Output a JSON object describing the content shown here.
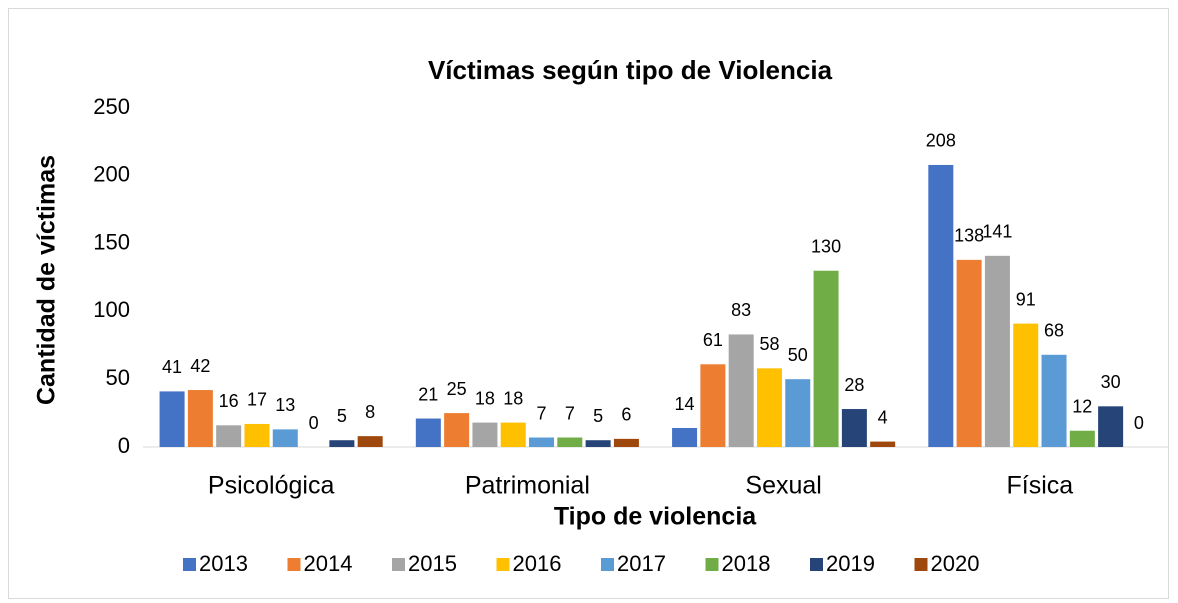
{
  "chart_data": {
    "type": "bar",
    "title": "Víctimas según tipo de Violencia",
    "x_label": "Tipo de violencia",
    "y_label": "Cantidad de víctimas",
    "categories": [
      "Psicológica",
      "Patrimonial",
      "Sexual",
      "Física"
    ],
    "series": [
      {
        "name": "2013",
        "color": "#4472c4",
        "values": [
          41,
          21,
          14,
          208
        ]
      },
      {
        "name": "2014",
        "color": "#ed7d31",
        "values": [
          42,
          25,
          61,
          138
        ]
      },
      {
        "name": "2015",
        "color": "#a5a5a5",
        "values": [
          16,
          18,
          83,
          141
        ]
      },
      {
        "name": "2016",
        "color": "#ffc000",
        "values": [
          17,
          18,
          58,
          91
        ]
      },
      {
        "name": "2017",
        "color": "#5b9bd5",
        "values": [
          13,
          7,
          50,
          68
        ]
      },
      {
        "name": "2018",
        "color": "#70ad47",
        "values": [
          0,
          7,
          130,
          12
        ]
      },
      {
        "name": "2019",
        "color": "#264478",
        "values": [
          5,
          5,
          28,
          30
        ]
      },
      {
        "name": "2020",
        "color": "#9e480e",
        "values": [
          8,
          6,
          4,
          0
        ]
      }
    ],
    "ylim": [
      0,
      250
    ],
    "yticks": [
      0,
      50,
      100,
      150,
      200,
      250
    ],
    "grid": false,
    "legend": "bottom"
  }
}
